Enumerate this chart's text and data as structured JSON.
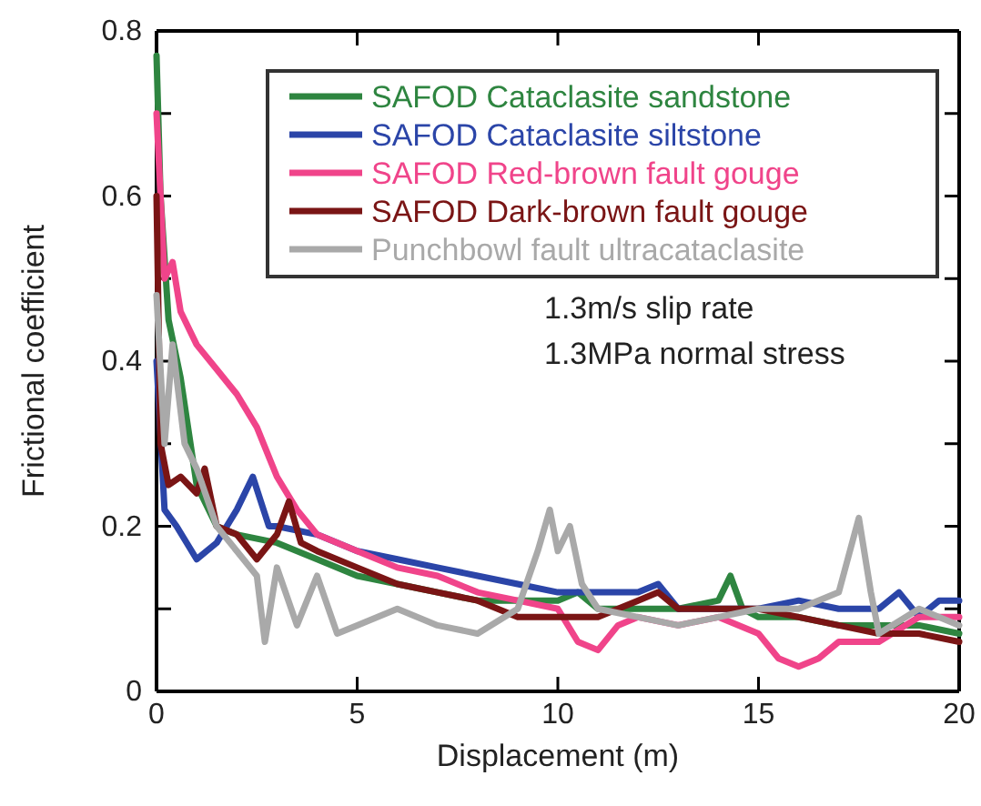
{
  "chart_data": {
    "type": "line",
    "xlabel": "Displacement (m)",
    "ylabel": "Frictional coefficient",
    "xlim": [
      0,
      20
    ],
    "xticks": [
      0,
      5,
      10,
      15,
      20
    ],
    "ylim": [
      0,
      0.8
    ],
    "yticks": [
      0,
      {
        "value": 0.1,
        "label": null
      },
      0.2,
      {
        "value": 0.3,
        "label": null
      },
      0.4,
      {
        "value": 0.5,
        "label": null
      },
      0.6,
      {
        "value": 0.7,
        "label": null
      },
      0.8
    ],
    "grid": false,
    "legend": "top right",
    "line_style": "solid",
    "marker": "none",
    "annotations": [
      "1.3m/s slip rate",
      "1.3MPa normal stress"
    ],
    "series": [
      {
        "name": "SAFOD Cataclasite sandstone",
        "color": "#2e8540",
        "x": [
          0,
          0.1,
          0.3,
          0.6,
          1,
          1.5,
          2,
          3,
          4,
          5,
          6,
          7,
          8,
          9,
          10,
          10.5,
          11,
          12,
          13,
          14,
          14.3,
          14.6,
          15,
          16,
          17,
          18,
          19,
          20
        ],
        "values": [
          0.77,
          0.6,
          0.45,
          0.38,
          0.25,
          0.2,
          0.19,
          0.18,
          0.16,
          0.14,
          0.13,
          0.12,
          0.11,
          0.11,
          0.11,
          0.12,
          0.1,
          0.1,
          0.1,
          0.11,
          0.14,
          0.1,
          0.09,
          0.09,
          0.08,
          0.08,
          0.08,
          0.07
        ]
      },
      {
        "name": "SAFOD Cataclasite siltstone",
        "color": "#2b45a8",
        "x": [
          0,
          0.2,
          0.5,
          1,
          1.5,
          2,
          2.4,
          2.8,
          3,
          4,
          5,
          6,
          7,
          8,
          9,
          10,
          11,
          12,
          12.5,
          13,
          14,
          15,
          16,
          17,
          18,
          18.5,
          19,
          19.5,
          20
        ],
        "values": [
          0.4,
          0.22,
          0.2,
          0.16,
          0.18,
          0.22,
          0.26,
          0.2,
          0.2,
          0.19,
          0.17,
          0.16,
          0.15,
          0.14,
          0.13,
          0.12,
          0.12,
          0.12,
          0.13,
          0.1,
          0.1,
          0.1,
          0.11,
          0.1,
          0.1,
          0.12,
          0.09,
          0.11,
          0.11
        ]
      },
      {
        "name": "SAFOD Red-brown fault gouge",
        "color": "#f0448a",
        "x": [
          0,
          0.2,
          0.4,
          0.6,
          1,
          1.5,
          2,
          2.5,
          3,
          3.5,
          4,
          5,
          6,
          7,
          8,
          9,
          10,
          10.5,
          11,
          11.5,
          12,
          13,
          14,
          15,
          15.5,
          16,
          16.5,
          17,
          18,
          19,
          20
        ],
        "values": [
          0.7,
          0.5,
          0.52,
          0.46,
          0.42,
          0.39,
          0.36,
          0.32,
          0.26,
          0.22,
          0.19,
          0.17,
          0.15,
          0.14,
          0.12,
          0.11,
          0.1,
          0.06,
          0.05,
          0.08,
          0.09,
          0.08,
          0.09,
          0.07,
          0.04,
          0.03,
          0.04,
          0.06,
          0.06,
          0.09,
          0.09
        ]
      },
      {
        "name": "SAFOD Dark-brown fault gouge",
        "color": "#7a1515",
        "x": [
          0,
          0.1,
          0.3,
          0.6,
          1,
          1.2,
          1.5,
          2,
          2.5,
          3,
          3.3,
          3.6,
          4,
          5,
          6,
          7,
          8,
          9,
          10,
          11,
          12,
          12.5,
          13,
          14,
          15,
          16,
          17,
          18,
          19,
          20
        ],
        "values": [
          0.6,
          0.3,
          0.25,
          0.26,
          0.24,
          0.27,
          0.2,
          0.19,
          0.16,
          0.19,
          0.23,
          0.18,
          0.17,
          0.15,
          0.13,
          0.12,
          0.11,
          0.09,
          0.09,
          0.09,
          0.11,
          0.12,
          0.1,
          0.1,
          0.1,
          0.09,
          0.08,
          0.07,
          0.07,
          0.06
        ]
      },
      {
        "name": "Punchbowl fault ultracataclasite",
        "color": "#a9a9a9",
        "x": [
          0,
          0.2,
          0.4,
          0.7,
          1,
          1.5,
          2,
          2.5,
          2.7,
          3,
          3.5,
          4,
          4.5,
          5,
          6,
          7,
          8,
          9,
          9.5,
          9.8,
          10,
          10.3,
          10.6,
          11,
          12,
          13,
          14,
          15,
          16,
          17,
          17.5,
          17.8,
          18,
          19,
          20
        ],
        "values": [
          0.48,
          0.3,
          0.42,
          0.3,
          0.27,
          0.2,
          0.17,
          0.14,
          0.06,
          0.15,
          0.08,
          0.14,
          0.07,
          0.08,
          0.1,
          0.08,
          0.07,
          0.1,
          0.17,
          0.22,
          0.17,
          0.2,
          0.13,
          0.1,
          0.09,
          0.08,
          0.09,
          0.1,
          0.1,
          0.12,
          0.21,
          0.12,
          0.07,
          0.1,
          0.08
        ]
      }
    ]
  }
}
